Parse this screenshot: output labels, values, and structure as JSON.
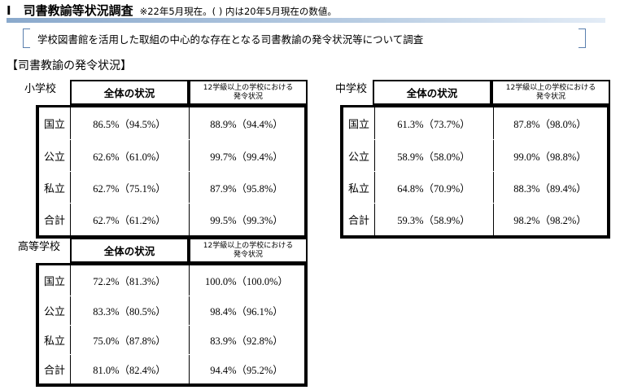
{
  "header": {
    "title": "Ⅰ　司書教諭等状況調査",
    "note": "※22年5月現在。( ) 内は20年5月現在の数値。"
  },
  "scope": "学校図書館を活用した取組の中心的な存在となる司書教諭の発令状況等について調査",
  "section_title": "【司書教諭の発令状況】",
  "col_headers": {
    "overall": "全体の状況",
    "large_line1": "12学級以上の学校における",
    "large_line2": "発令状況"
  },
  "tables": {
    "elementary": {
      "label": "小学校",
      "rows": [
        {
          "type": "国立",
          "overall": "86.5%（94.5%）",
          "large": "88.9%（94.4%）"
        },
        {
          "type": "公立",
          "overall": "62.6%（61.0%）",
          "large": "99.7%（99.4%）"
        },
        {
          "type": "私立",
          "overall": "62.7%（75.1%）",
          "large": "87.9%（95.8%）"
        },
        {
          "type": "合計",
          "overall": "62.7%（61.2%）",
          "large": "99.5%（99.3%）"
        }
      ]
    },
    "junior": {
      "label": "中学校",
      "rows": [
        {
          "type": "国立",
          "overall": "61.3%（73.7%）",
          "large": "87.8%（98.0%）"
        },
        {
          "type": "公立",
          "overall": "58.9%（58.0%）",
          "large": "99.0%（98.8%）"
        },
        {
          "type": "私立",
          "overall": "64.8%（70.9%）",
          "large": "88.3%（89.4%）"
        },
        {
          "type": "合計",
          "overall": "59.3%（58.9%）",
          "large": "98.2%（98.2%）"
        }
      ]
    },
    "high": {
      "label": "高等学校",
      "rows": [
        {
          "type": "国立",
          "overall": "72.2%（81.3%）",
          "large": "100.0%（100.0%）"
        },
        {
          "type": "公立",
          "overall": "83.3%（80.5%）",
          "large": "98.4%（96.1%）"
        },
        {
          "type": "私立",
          "overall": "75.0%（87.8%）",
          "large": "83.9%（92.8%）"
        },
        {
          "type": "合計",
          "overall": "81.0%（82.4%）",
          "large": "94.4%（95.2%）"
        }
      ]
    }
  }
}
